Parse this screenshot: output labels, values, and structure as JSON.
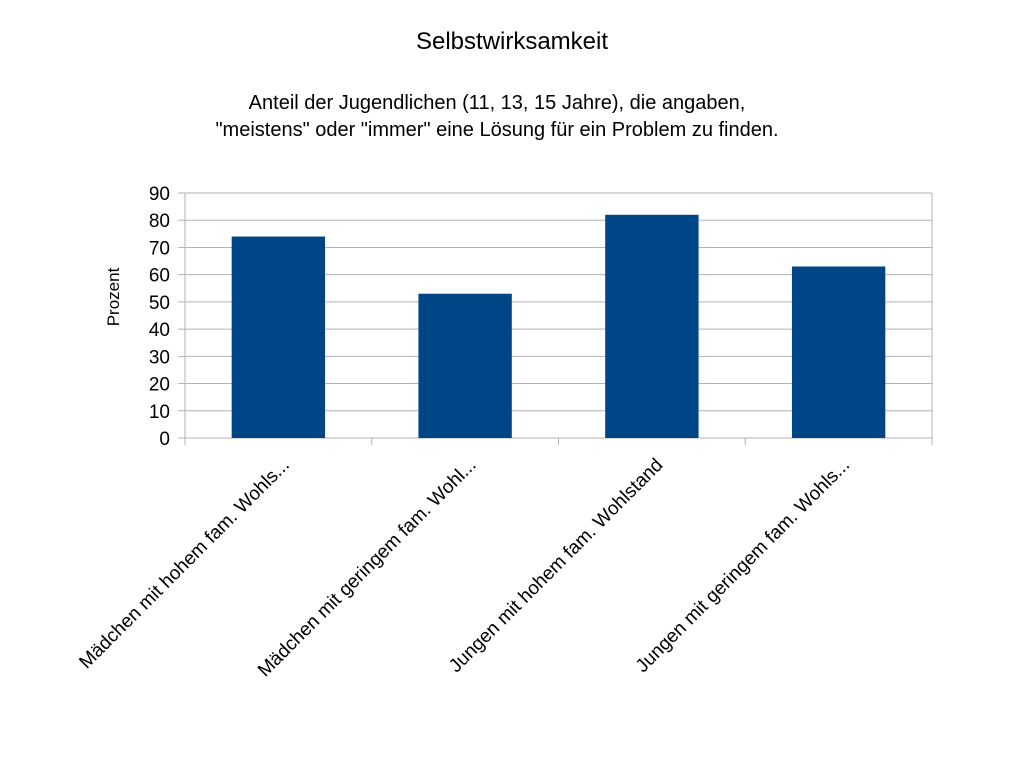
{
  "chart_data": {
    "type": "bar",
    "title": "Selbstwirksamkeit",
    "subtitle_lines": [
      "Anteil der Jugendlichen (11, 13, 15 Jahre), die angaben,",
      "\"meistens\" oder \"immer\" eine Lösung für ein Problem zu finden."
    ],
    "xlabel": "",
    "ylabel": "Prozent",
    "ylim": [
      0,
      90
    ],
    "yticks": [
      0,
      10,
      20,
      30,
      40,
      50,
      60,
      70,
      80,
      90
    ],
    "grid": true,
    "legend": "none",
    "categories": [
      "Mädchen mit hohem fam. Wohls...",
      "Mädchen mit geringem fam. Wohl...",
      "Jungen mit hohem fam. Wohlstand",
      "Jungen mit geringem fam. Wohls..."
    ],
    "values": [
      74,
      53,
      82,
      63
    ],
    "bar_color": "#004586",
    "grid_color": "#b3b3b3"
  }
}
